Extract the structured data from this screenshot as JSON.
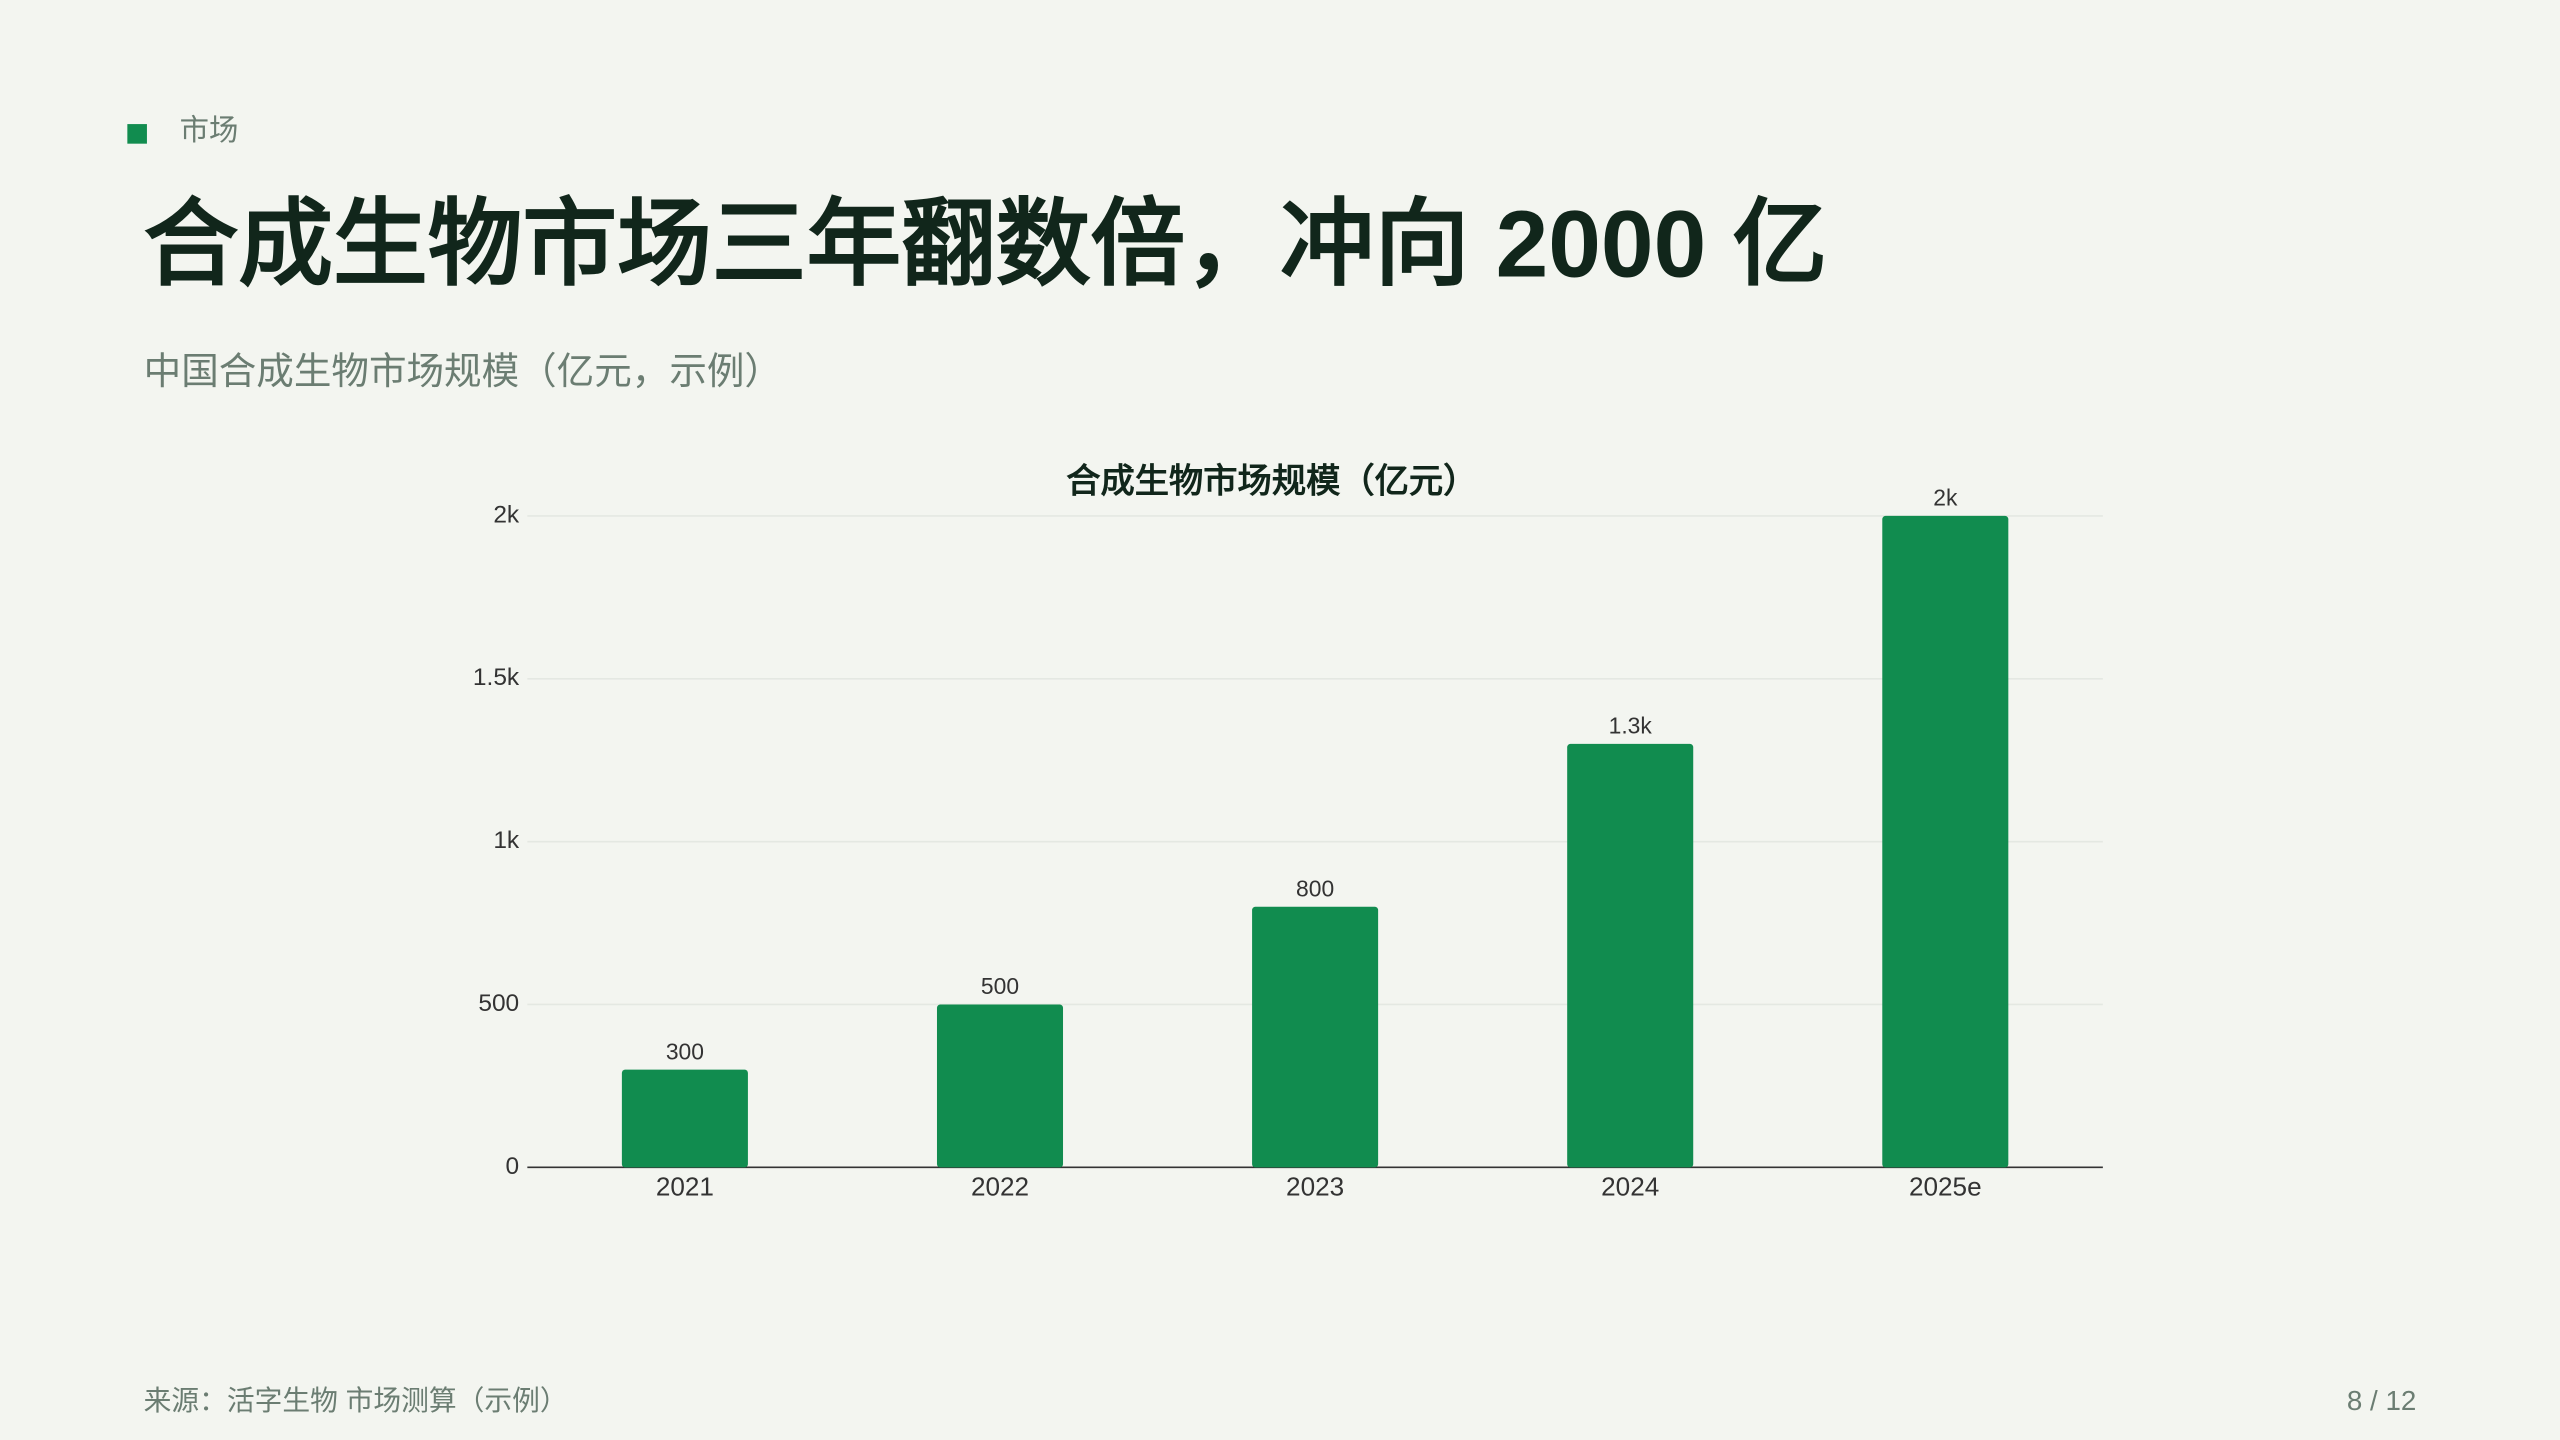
{
  "section": "市场",
  "title": "合成生物市场三年翻数倍，冲向 2000 亿",
  "subtitle": "中国合成生物市场规模（亿元，示例）",
  "chart_data": {
    "type": "bar",
    "title": "合成生物市场规模（亿元）",
    "categories": [
      "2021",
      "2022",
      "2023",
      "2024",
      "2025e"
    ],
    "values": [
      300,
      500,
      800,
      1300,
      2000
    ],
    "value_labels": [
      "300",
      "500",
      "800",
      "1.3k",
      "2k"
    ],
    "color": "#118c4f",
    "ylim": [
      0,
      2000
    ],
    "yticks": [
      0,
      500,
      {
        "value": 1000,
        "label": "1k"
      },
      {
        "value": 1500,
        "label": "1.5k"
      },
      {
        "value": 2000,
        "label": "2k"
      }
    ],
    "grid": true
  },
  "footer": {
    "source": "来源：活字生物 市场测算（示例）",
    "page": "8 / 12"
  }
}
